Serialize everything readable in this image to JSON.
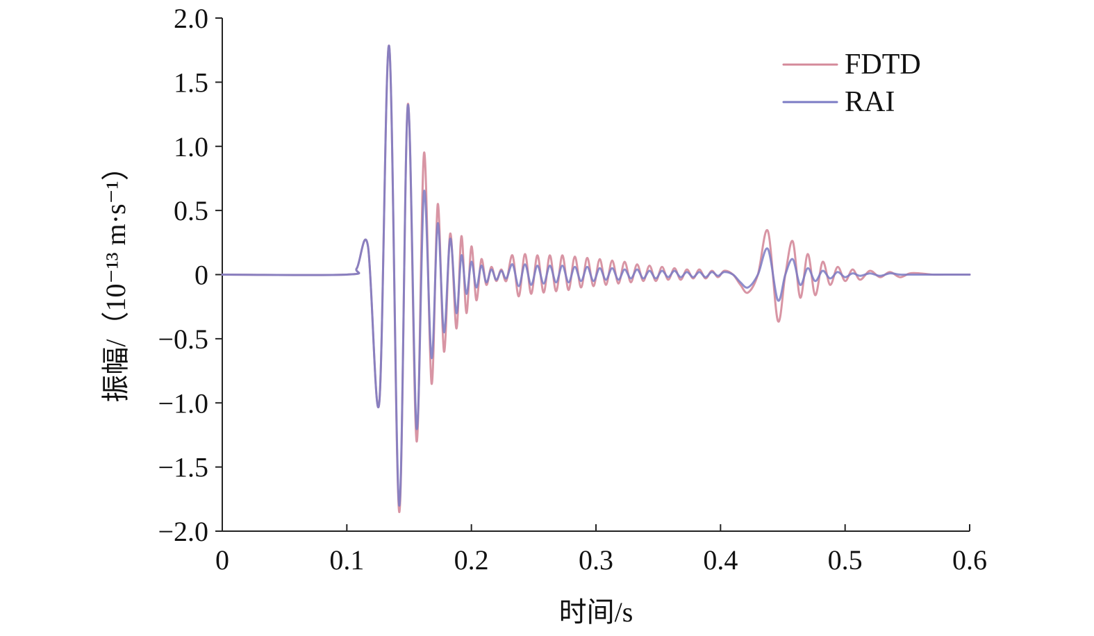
{
  "chart_data": {
    "type": "line",
    "title": "",
    "xlabel": "时间/s",
    "ylabel": "振幅/（10⁻¹³ m·s⁻¹）",
    "xlim": [
      0,
      0.6
    ],
    "ylim": [
      -2.0,
      2.0
    ],
    "x_ticks": [
      0,
      0.1,
      0.2,
      0.3,
      0.4,
      0.5,
      0.6
    ],
    "x_tick_labels": [
      "0",
      "0.1",
      "0.2",
      "0.3",
      "0.4",
      "0.5",
      "0.6"
    ],
    "y_ticks": [
      2.0,
      1.5,
      1.0,
      0.5,
      0,
      -0.5,
      -1.0,
      -1.5,
      -2.0
    ],
    "y_tick_labels": [
      "2.0",
      "1.5",
      "1.0",
      "0.5",
      "0",
      "−0.5",
      "−1.0",
      "−1.5",
      "−2.0"
    ],
    "grid": false,
    "legend_position": "top-right",
    "series": [
      {
        "name": "FDTD",
        "color": "#d4899a",
        "x": [
          0,
          0.1,
          0.108,
          0.117,
          0.126,
          0.134,
          0.142,
          0.149,
          0.156,
          0.162,
          0.168,
          0.173,
          0.178,
          0.183,
          0.188,
          0.192,
          0.196,
          0.2,
          0.204,
          0.208,
          0.212,
          0.216,
          0.22,
          0.224,
          0.228,
          0.233,
          0.238,
          0.243,
          0.248,
          0.253,
          0.258,
          0.263,
          0.268,
          0.273,
          0.278,
          0.283,
          0.288,
          0.293,
          0.298,
          0.303,
          0.308,
          0.313,
          0.318,
          0.323,
          0.328,
          0.333,
          0.338,
          0.343,
          0.348,
          0.353,
          0.358,
          0.363,
          0.368,
          0.373,
          0.378,
          0.383,
          0.388,
          0.393,
          0.398,
          0.403,
          0.41,
          0.416,
          0.422,
          0.43,
          0.438,
          0.446,
          0.452,
          0.458,
          0.464,
          0.47,
          0.476,
          0.482,
          0.488,
          0.494,
          0.5,
          0.506,
          0.512,
          0.52,
          0.528,
          0.536,
          0.544,
          0.552,
          0.56,
          0.57,
          0.58,
          0.6
        ],
        "y": [
          0,
          0,
          0.05,
          0.22,
          -1.0,
          1.78,
          -1.85,
          1.33,
          -1.3,
          0.95,
          -0.85,
          0.55,
          -0.6,
          0.32,
          -0.42,
          0.3,
          -0.3,
          0.22,
          -0.2,
          0.12,
          -0.08,
          0.06,
          -0.05,
          0.04,
          -0.05,
          0.15,
          -0.17,
          0.16,
          -0.15,
          0.15,
          -0.14,
          0.15,
          -0.13,
          0.15,
          -0.12,
          0.14,
          -0.1,
          0.13,
          -0.09,
          0.12,
          -0.08,
          0.11,
          -0.07,
          0.1,
          -0.06,
          0.08,
          -0.05,
          0.07,
          -0.05,
          0.06,
          -0.04,
          0.05,
          -0.04,
          0.04,
          -0.03,
          0.04,
          -0.03,
          0.03,
          -0.02,
          0.03,
          0,
          -0.08,
          -0.14,
          0.0,
          0.34,
          -0.36,
          0.0,
          0.26,
          -0.18,
          0.16,
          -0.16,
          0.1,
          -0.08,
          0.06,
          -0.05,
          0.04,
          -0.04,
          0.03,
          -0.02,
          0.02,
          -0.02,
          0.01,
          0.01,
          0,
          0,
          0
        ]
      },
      {
        "name": "RAI",
        "color": "#7b7bc4",
        "x": [
          0,
          0.1,
          0.108,
          0.117,
          0.126,
          0.134,
          0.142,
          0.149,
          0.156,
          0.162,
          0.168,
          0.173,
          0.178,
          0.183,
          0.188,
          0.192,
          0.196,
          0.2,
          0.204,
          0.208,
          0.212,
          0.216,
          0.22,
          0.224,
          0.228,
          0.233,
          0.238,
          0.243,
          0.248,
          0.253,
          0.258,
          0.263,
          0.268,
          0.273,
          0.278,
          0.283,
          0.288,
          0.293,
          0.298,
          0.303,
          0.308,
          0.313,
          0.318,
          0.323,
          0.328,
          0.333,
          0.338,
          0.343,
          0.348,
          0.353,
          0.358,
          0.363,
          0.368,
          0.373,
          0.378,
          0.383,
          0.388,
          0.393,
          0.398,
          0.403,
          0.41,
          0.416,
          0.422,
          0.43,
          0.438,
          0.446,
          0.452,
          0.458,
          0.464,
          0.47,
          0.476,
          0.482,
          0.488,
          0.494,
          0.5,
          0.506,
          0.512,
          0.52,
          0.528,
          0.536,
          0.544,
          0.552,
          0.56,
          0.57,
          0.58,
          0.6
        ],
        "y": [
          0,
          0,
          0.05,
          0.22,
          -1.0,
          1.78,
          -1.8,
          1.32,
          -1.2,
          0.65,
          -0.65,
          0.4,
          -0.45,
          0.28,
          -0.3,
          0.15,
          -0.15,
          0.1,
          -0.1,
          0.07,
          -0.06,
          0.04,
          -0.04,
          0.03,
          -0.03,
          0.08,
          -0.09,
          0.08,
          -0.08,
          0.07,
          -0.07,
          0.07,
          -0.06,
          0.07,
          -0.06,
          0.06,
          -0.05,
          0.06,
          -0.05,
          0.05,
          -0.04,
          0.05,
          -0.04,
          0.04,
          -0.03,
          0.04,
          -0.03,
          0.03,
          -0.03,
          0.03,
          -0.02,
          0.03,
          -0.02,
          0.02,
          -0.02,
          0.02,
          -0.02,
          0.02,
          -0.01,
          0.02,
          0,
          -0.06,
          -0.1,
          0.0,
          0.2,
          -0.2,
          0.0,
          0.12,
          -0.08,
          0.05,
          -0.05,
          0.03,
          -0.03,
          0.02,
          -0.02,
          0.01,
          -0.01,
          0.01,
          -0.01,
          0.01,
          0,
          0,
          0,
          0,
          0,
          0
        ]
      }
    ]
  }
}
